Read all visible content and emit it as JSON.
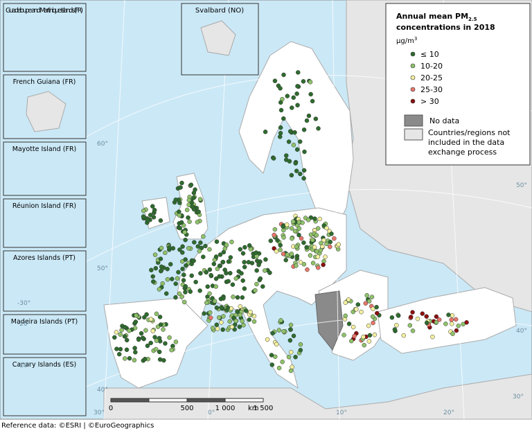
{
  "insets": [
    {
      "label": "Guadeloupe and Martinique Islands (FR)"
    },
    {
      "label": "French Guiana (FR)"
    },
    {
      "label": "Mayotte Island (FR)"
    },
    {
      "label": "Réunion Island (FR)"
    },
    {
      "label": "Azores Islands (PT)"
    },
    {
      "label": "Madeira Islands (PT)"
    },
    {
      "label": "Canary Islands (ES)"
    }
  ],
  "svalbard": {
    "label": "Svalbard (NO)"
  },
  "legend": {
    "title_main": "Annual mean PM",
    "title_sub": "2.5",
    "title_end": "concentrations in 2018",
    "unit_main": "µg/m",
    "unit_sup": "3",
    "classes": [
      {
        "label": "≤ 10",
        "color": "#2e6b2e"
      },
      {
        "label": "10-20",
        "color": "#8fc26a"
      },
      {
        "label": "20-25",
        "color": "#f4f0a0"
      },
      {
        "label": "25-30",
        "color": "#e8766a"
      },
      {
        "label": "> 30",
        "color": "#8b1010"
      }
    ],
    "no_data": "No data",
    "not_included": "Countries/regions  not included in the data exchange process"
  },
  "scale": [
    "0",
    "500",
    "1 000",
    "1 500",
    "km"
  ],
  "graticule": [
    "60°",
    "50°",
    "40°",
    "30°",
    "-30°",
    "-20°",
    "-10°",
    "0°",
    "10°",
    "20°",
    "30°",
    "40°",
    "50°"
  ],
  "footer": "Reference data: ©ESRI | ©EuroGeographics"
}
